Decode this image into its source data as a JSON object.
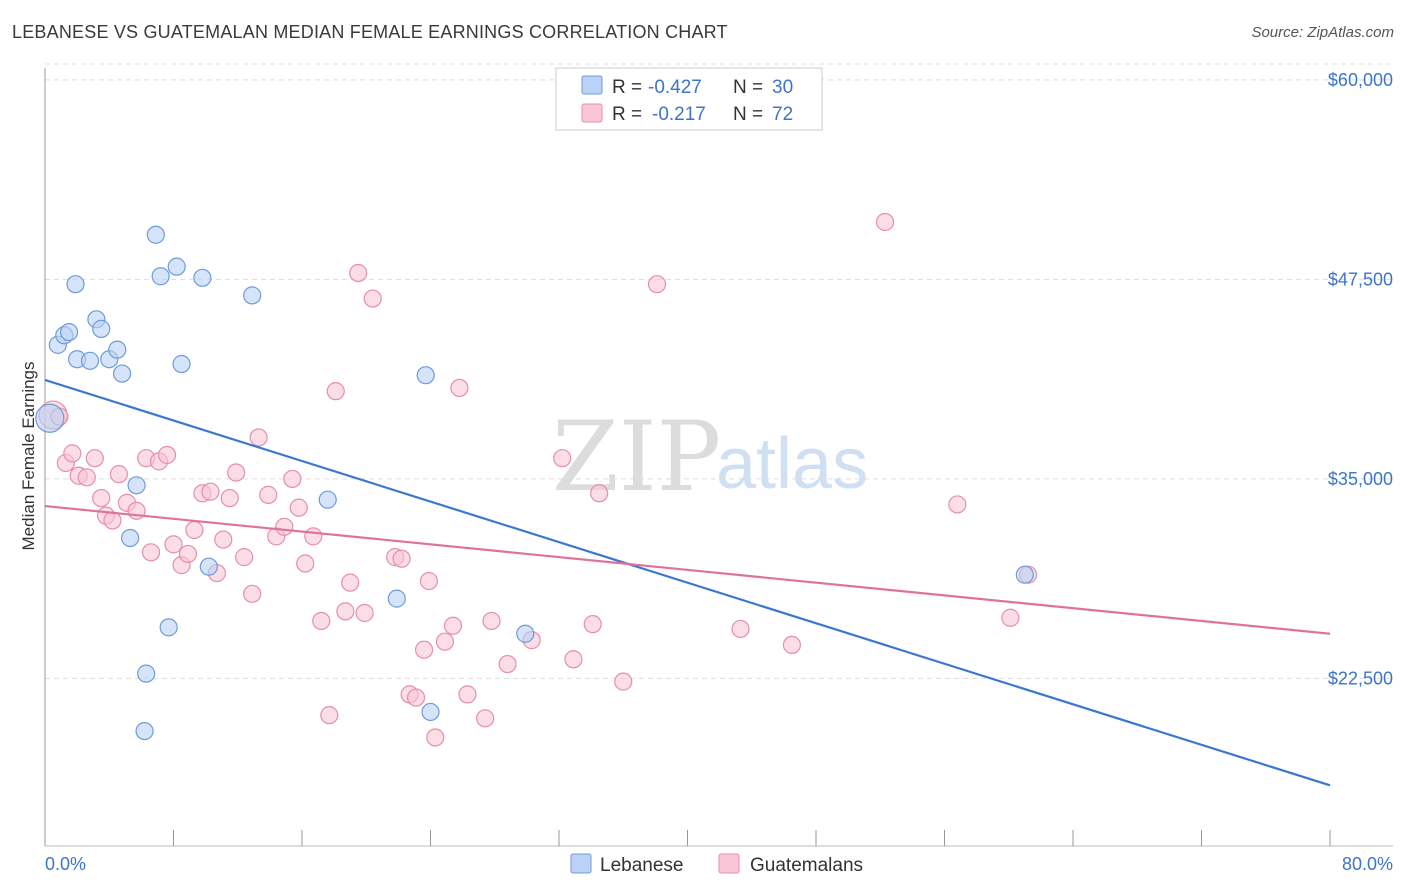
{
  "title": "LEBANESE VS GUATEMALAN MEDIAN FEMALE EARNINGS CORRELATION CHART",
  "source": "Source: ZipAtlas.com",
  "watermark": {
    "zip": "ZIP",
    "atlas": "atlas"
  },
  "colors": {
    "lebanese_fill": "#b9d2f5",
    "lebanese_stroke": "#6f9bd8",
    "lebanese_line": "#3a78d0",
    "guatemalan_fill": "#f8c6d5",
    "guatemalan_stroke": "#e48fab",
    "guatemalan_line": "#e0729a",
    "tick_color": "#3d74c9",
    "grid": "#dddddd"
  },
  "legend": {
    "rows": [
      {
        "r_label": "R =",
        "r_value": "-0.427",
        "n_label": "N =",
        "n_value": "30"
      },
      {
        "r_label": "R =",
        "r_value": "-0.217",
        "n_label": "N =",
        "n_value": "72"
      }
    ]
  },
  "bottom_legend": [
    "Lebanese",
    "Guatemalans"
  ],
  "chart_data": {
    "type": "scatter",
    "title": "LEBANESE VS GUATEMALAN MEDIAN FEMALE EARNINGS CORRELATION CHART",
    "xlabel": "",
    "ylabel": "Median Female Earnings",
    "xlim": [
      0,
      80
    ],
    "ylim": [
      12000,
      62000
    ],
    "x_tick_labels": [
      "0.0%",
      "80.0%"
    ],
    "y_ticks": [
      22500,
      35000,
      47500,
      60000
    ],
    "y_tick_labels": [
      "$22,500",
      "$35,000",
      "$47,500",
      "$60,000"
    ],
    "grid": true,
    "legend_position": "top-center",
    "series": [
      {
        "name": "Lebanese",
        "trend": {
          "x": [
            0,
            80
          ],
          "y": [
            41200,
            15800
          ]
        },
        "points": [
          [
            0.3,
            38800
          ],
          [
            0.8,
            43400
          ],
          [
            1.2,
            44000
          ],
          [
            1.5,
            44200
          ],
          [
            1.9,
            47200
          ],
          [
            2.0,
            42500
          ],
          [
            2.8,
            42400
          ],
          [
            3.2,
            45000
          ],
          [
            3.5,
            44400
          ],
          [
            4.0,
            42500
          ],
          [
            4.5,
            43100
          ],
          [
            4.8,
            41600
          ],
          [
            5.7,
            34600
          ],
          [
            5.3,
            31300
          ],
          [
            6.9,
            50300
          ],
          [
            7.2,
            47700
          ],
          [
            8.2,
            48300
          ],
          [
            8.5,
            42200
          ],
          [
            9.8,
            47600
          ],
          [
            12.9,
            46500
          ],
          [
            7.7,
            25700
          ],
          [
            6.3,
            22800
          ],
          [
            6.2,
            19200
          ],
          [
            10.2,
            29500
          ],
          [
            17.6,
            33700
          ],
          [
            21.9,
            27500
          ],
          [
            23.7,
            41500
          ],
          [
            24.0,
            20400
          ],
          [
            29.9,
            25300
          ],
          [
            61.0,
            29000
          ]
        ]
      },
      {
        "name": "Guatemalans",
        "trend": {
          "x": [
            0,
            80
          ],
          "y": [
            33300,
            25300
          ]
        },
        "points": [
          [
            0.5,
            39000
          ],
          [
            0.9,
            38900
          ],
          [
            1.3,
            36000
          ],
          [
            1.7,
            36600
          ],
          [
            2.1,
            35200
          ],
          [
            2.6,
            35100
          ],
          [
            3.1,
            36300
          ],
          [
            3.5,
            33800
          ],
          [
            3.8,
            32700
          ],
          [
            4.2,
            32400
          ],
          [
            4.6,
            35300
          ],
          [
            5.1,
            33500
          ],
          [
            5.7,
            33000
          ],
          [
            6.3,
            36300
          ],
          [
            6.6,
            30400
          ],
          [
            7.1,
            36100
          ],
          [
            7.6,
            36500
          ],
          [
            8.0,
            30900
          ],
          [
            8.5,
            29600
          ],
          [
            8.9,
            30300
          ],
          [
            9.3,
            31800
          ],
          [
            9.8,
            34100
          ],
          [
            10.3,
            34200
          ],
          [
            10.7,
            29100
          ],
          [
            11.1,
            31200
          ],
          [
            11.5,
            33800
          ],
          [
            11.9,
            35400
          ],
          [
            12.4,
            30100
          ],
          [
            12.9,
            27800
          ],
          [
            13.3,
            37600
          ],
          [
            13.9,
            34000
          ],
          [
            14.4,
            31400
          ],
          [
            14.9,
            32000
          ],
          [
            15.4,
            35000
          ],
          [
            15.8,
            33200
          ],
          [
            16.2,
            29700
          ],
          [
            16.7,
            31400
          ],
          [
            17.2,
            26100
          ],
          [
            17.7,
            20200
          ],
          [
            18.1,
            40500
          ],
          [
            18.7,
            26700
          ],
          [
            19.0,
            28500
          ],
          [
            19.5,
            47900
          ],
          [
            19.9,
            26600
          ],
          [
            20.4,
            46300
          ],
          [
            21.8,
            30100
          ],
          [
            22.2,
            30000
          ],
          [
            22.7,
            21500
          ],
          [
            23.1,
            21300
          ],
          [
            23.6,
            24300
          ],
          [
            23.9,
            28600
          ],
          [
            24.3,
            18800
          ],
          [
            24.9,
            24800
          ],
          [
            25.4,
            25800
          ],
          [
            25.8,
            40700
          ],
          [
            26.3,
            21500
          ],
          [
            27.4,
            20000
          ],
          [
            27.8,
            26100
          ],
          [
            28.8,
            23400
          ],
          [
            30.3,
            24900
          ],
          [
            32.2,
            36300
          ],
          [
            32.9,
            23700
          ],
          [
            34.1,
            25900
          ],
          [
            34.5,
            34100
          ],
          [
            36.0,
            22300
          ],
          [
            38.1,
            47200
          ],
          [
            43.3,
            25600
          ],
          [
            46.5,
            24600
          ],
          [
            52.3,
            51100
          ],
          [
            56.8,
            33400
          ],
          [
            60.1,
            26300
          ],
          [
            61.2,
            29000
          ]
        ]
      }
    ]
  }
}
